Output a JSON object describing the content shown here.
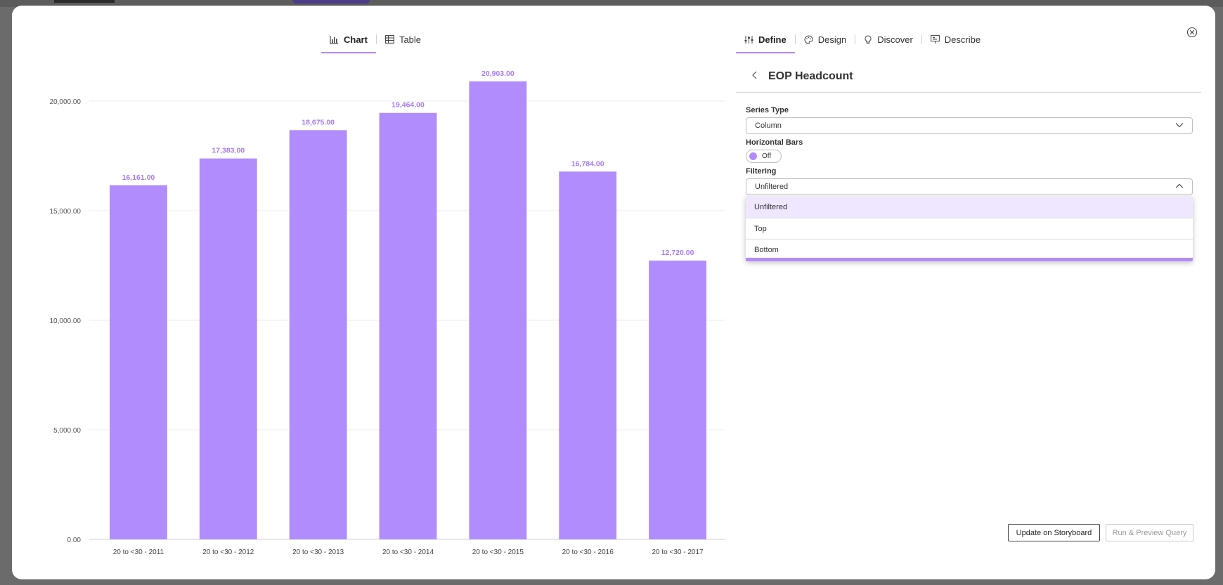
{
  "left_tabs": [
    {
      "label": "Chart",
      "icon": "bar-chart-icon",
      "active": true
    },
    {
      "label": "Table",
      "icon": "table-icon",
      "active": false
    }
  ],
  "right_tabs": [
    {
      "label": "Define",
      "icon": "sliders-icon",
      "active": true
    },
    {
      "label": "Design",
      "icon": "palette-icon",
      "active": false
    },
    {
      "label": "Discover",
      "icon": "lightbulb-icon",
      "active": false
    },
    {
      "label": "Describe",
      "icon": "presentation-icon",
      "active": false
    }
  ],
  "panel": {
    "title": "EOP Headcount",
    "series_type_label": "Series Type",
    "series_type_value": "Column",
    "horizontal_bars_label": "Horizontal Bars",
    "horizontal_bars_value": "Off",
    "filtering_label": "Filtering",
    "filtering_value": "Unfiltered",
    "filtering_options": [
      "Unfiltered",
      "Top",
      "Bottom"
    ],
    "update_button": "Update on Storyboard",
    "run_button": "Run & Preview Query"
  },
  "colors": {
    "accent": "#b18cfd",
    "bar": "#b18cfd",
    "data_label": "#a77bf5"
  },
  "chart_data": {
    "type": "bar",
    "categories": [
      "20 to <30 - 2011",
      "20 to <30 - 2012",
      "20 to <30 - 2013",
      "20 to <30 - 2014",
      "20 to <30 - 2015",
      "20 to <30 - 2016",
      "20 to <30 - 2017"
    ],
    "values": [
      16161,
      17383,
      18675,
      19464,
      20903,
      16784,
      12720
    ],
    "data_labels": [
      "16,161.00",
      "17,383.00",
      "18,675.00",
      "19,464.00",
      "20,903.00",
      "16,784.00",
      "12,720.00"
    ],
    "y_ticks": [
      0,
      5000,
      10000,
      15000,
      20000
    ],
    "y_tick_labels": [
      "0.00",
      "5,000.00",
      "10,000.00",
      "15,000.00",
      "20,000.00"
    ],
    "ylim": [
      0,
      20000
    ],
    "grid": true,
    "legend": "none"
  }
}
